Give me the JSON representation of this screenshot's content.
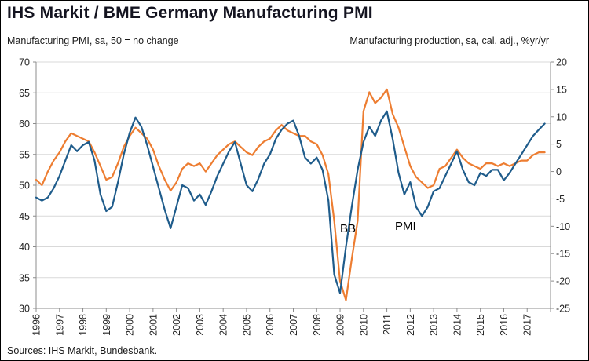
{
  "header": {
    "title": "IHS Markit / BME Germany Manufacturing PMI"
  },
  "subtitles": {
    "left": "Manufacturing PMI, sa, 50 = no change",
    "right": "Manufacturing production, sa, cal. adj., %yr/yr"
  },
  "footer": {
    "source": "Sources: IHS Markit, Bundesbank."
  },
  "series_labels": {
    "bb": "BB",
    "pmi": "PMI"
  },
  "colors": {
    "pmi_line": "#1f5c8b",
    "bb_line": "#ed7d31",
    "grid": "#d9d9d9",
    "axis": "#8c8c8c",
    "tick_text": "#262626"
  },
  "chart_data": {
    "type": "line",
    "title": "IHS Markit / BME Germany Manufacturing PMI",
    "left_axis_label": "Manufacturing PMI, sa, 50 = no change",
    "right_axis_label": "Manufacturing production, sa, cal. adj., %yr/yr",
    "grid": true,
    "x_range": [
      1996,
      2018
    ],
    "x_step": 0.25,
    "x_ticks": [
      1996,
      1997,
      1998,
      1999,
      2000,
      2001,
      2002,
      2003,
      2004,
      2005,
      2006,
      2007,
      2008,
      2009,
      2010,
      2011,
      2012,
      2013,
      2014,
      2015,
      2016,
      2017
    ],
    "left_axis": {
      "range": [
        30,
        70
      ],
      "ticks": [
        30,
        35,
        40,
        45,
        50,
        55,
        60,
        65,
        70
      ]
    },
    "right_axis": {
      "range": [
        -25,
        20
      ],
      "ticks": [
        -25,
        -20,
        -15,
        -10,
        -5,
        0,
        5,
        10,
        15,
        20
      ]
    },
    "series": [
      {
        "name": "BB",
        "axis": "right",
        "color": "#ed7d31",
        "values": [
          -1.5,
          -2.5,
          0.0,
          2.0,
          3.5,
          5.5,
          7.0,
          6.5,
          6.0,
          5.5,
          3.5,
          1.0,
          -1.5,
          -1.0,
          1.5,
          4.5,
          6.5,
          8.0,
          7.0,
          6.0,
          4.0,
          1.0,
          -1.5,
          -3.5,
          -2.0,
          0.5,
          1.5,
          1.0,
          1.5,
          0.0,
          1.5,
          3.0,
          4.0,
          5.0,
          5.5,
          4.5,
          3.5,
          3.0,
          4.5,
          5.5,
          6.0,
          7.5,
          8.5,
          7.5,
          7.0,
          6.5,
          6.5,
          5.5,
          5.0,
          3.0,
          -0.5,
          -9.0,
          -20.0,
          -23.5,
          -16.0,
          -9.0,
          11.0,
          14.5,
          12.5,
          13.5,
          15.0,
          10.5,
          8.0,
          4.5,
          1.0,
          -1.0,
          -2.0,
          -3.0,
          -2.5,
          0.5,
          1.0,
          2.5,
          4.0,
          2.5,
          1.5,
          1.0,
          0.5,
          1.5,
          1.5,
          1.0,
          1.5,
          1.0,
          1.5,
          2.0,
          2.0,
          3.0,
          3.5,
          3.5
        ]
      },
      {
        "name": "PMI",
        "axis": "left",
        "color": "#1f5c8b",
        "values": [
          48.0,
          47.5,
          48.0,
          49.5,
          51.5,
          54.0,
          56.5,
          55.5,
          56.5,
          57.0,
          54.0,
          48.5,
          45.8,
          46.5,
          50.5,
          55.0,
          58.5,
          61.0,
          59.5,
          56.5,
          53.0,
          49.5,
          46.0,
          43.0,
          46.5,
          50.0,
          49.5,
          47.5,
          48.5,
          46.8,
          49.0,
          51.5,
          53.5,
          55.5,
          57.0,
          53.5,
          50.0,
          49.0,
          51.0,
          53.5,
          55.0,
          57.5,
          59.0,
          60.0,
          60.5,
          58.0,
          54.5,
          53.5,
          54.5,
          52.5,
          47.5,
          35.5,
          32.5,
          40.0,
          46.5,
          52.5,
          57.0,
          59.5,
          58.0,
          60.5,
          62.0,
          57.5,
          52.0,
          48.5,
          50.5,
          46.5,
          45.0,
          46.5,
          49.0,
          49.5,
          51.5,
          53.5,
          55.5,
          52.5,
          50.5,
          50.0,
          52.0,
          51.5,
          52.5,
          52.5,
          50.8,
          52.0,
          53.5,
          55.0,
          56.5,
          58.0,
          59.0,
          60.0
        ]
      }
    ]
  }
}
